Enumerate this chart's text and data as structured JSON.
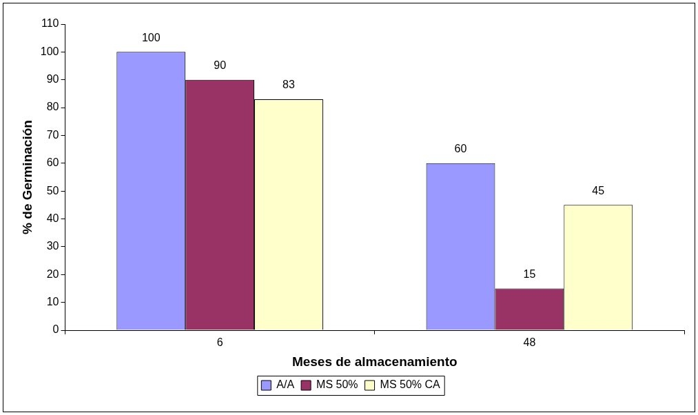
{
  "chart_data": {
    "type": "bar",
    "xlabel": "Meses de almacenamiento",
    "ylabel": "% de Germinación",
    "categories": [
      "6",
      "48"
    ],
    "series": [
      {
        "name": "A/A",
        "color": "#9999ff",
        "values": [
          100,
          60
        ]
      },
      {
        "name": "MS 50%",
        "color": "#993366",
        "values": [
          90,
          15
        ]
      },
      {
        "name": "MS 50% CA",
        "color": "#ffffcc",
        "values": [
          83,
          45
        ]
      }
    ],
    "ylim": [
      0,
      110
    ],
    "yticks": [
      0,
      10,
      20,
      30,
      40,
      50,
      60,
      70,
      80,
      90,
      100,
      110
    ],
    "grid": false,
    "legend": "bottom",
    "data_labels": true
  }
}
